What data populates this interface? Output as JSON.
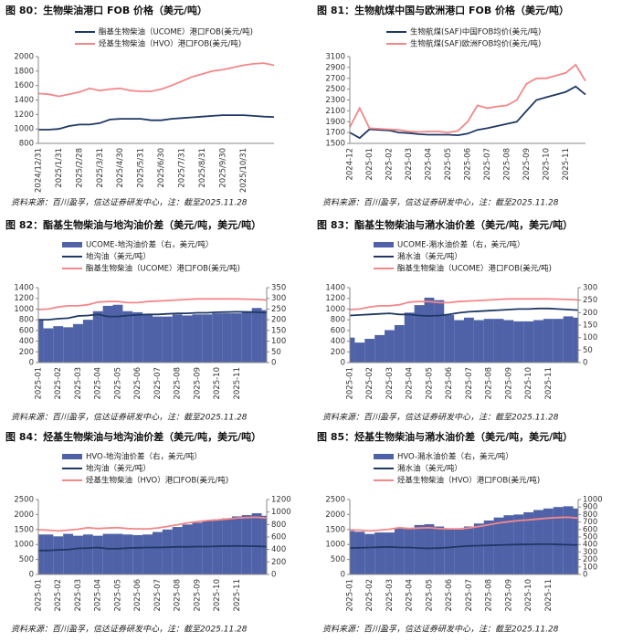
{
  "chart_data": [
    {
      "type": "line",
      "title": "图 80：生物柴油港口 FOB 价格（美元/吨）",
      "source": "资料来源：百川盈孚，信达证券研发中心，注：截至2025.11.28",
      "categories": [
        "2024/12/31",
        null,
        "2025/1/31",
        null,
        "2025/2/28",
        null,
        "2025/3/31",
        null,
        "2025/4/30",
        null,
        "2025/5/31",
        null,
        "2025/6/30",
        null,
        "2025/7/31",
        null,
        "2025/8/31",
        null,
        "2025/9/30",
        null,
        "2025/10/31",
        null,
        null,
        null
      ],
      "ylim": [
        800,
        2000
      ],
      "yticks": [
        800,
        1000,
        1200,
        1400,
        1600,
        1800,
        2000
      ],
      "series": [
        {
          "name": "酯基生物柴油（UCOME）港口FOB(美元/吨)",
          "color": "#1f3864",
          "values": [
            990,
            990,
            1000,
            1040,
            1060,
            1060,
            1080,
            1130,
            1140,
            1140,
            1140,
            1120,
            1120,
            1140,
            1150,
            1160,
            1170,
            1180,
            1190,
            1190,
            1190,
            1180,
            1170,
            1165
          ]
        },
        {
          "name": "烃基生物柴油（HVO）港口FOB(美元/吨)",
          "color": "#f4878a",
          "values": [
            1490,
            1480,
            1450,
            1480,
            1510,
            1560,
            1530,
            1550,
            1560,
            1530,
            1520,
            1520,
            1550,
            1600,
            1660,
            1720,
            1760,
            1800,
            1820,
            1850,
            1880,
            1900,
            1910,
            1880
          ]
        }
      ]
    },
    {
      "type": "line",
      "title": "图 81：生物航煤中国与欧洲港口 FOB 价格（美元/吨）",
      "source": "资料来源：百川盈孚，信达证券研发中心，注：截至2025.11.28",
      "categories": [
        "2024-12",
        null,
        "2025-01",
        null,
        "2025-02",
        null,
        "2025-03",
        null,
        "2025-04",
        null,
        "2025-05",
        null,
        "2025-06",
        null,
        "2025-07",
        null,
        "2025-08",
        null,
        "2025-09",
        null,
        "2025-10",
        null,
        "2025-11",
        null,
        null
      ],
      "ylim": [
        1500,
        3100
      ],
      "yticks": [
        1500,
        1700,
        1900,
        2100,
        2300,
        2500,
        2700,
        2900,
        3100
      ],
      "series": [
        {
          "name": "生物航煤(SAF)中国FOB均价(美元/吨)",
          "color": "#1f3864",
          "values": [
            1700,
            1600,
            1760,
            1750,
            1740,
            1700,
            1690,
            1670,
            1660,
            1660,
            1660,
            1650,
            1680,
            1750,
            1780,
            1820,
            1860,
            1900,
            2100,
            2300,
            2350,
            2400,
            2450,
            2550,
            2400
          ]
        },
        {
          "name": "生物航煤(SAF)欧洲FOB均价(美元/吨)",
          "color": "#f4878a",
          "values": [
            1800,
            2150,
            1780,
            1770,
            1760,
            1750,
            1720,
            1710,
            1720,
            1720,
            1700,
            1730,
            1900,
            2200,
            2150,
            2180,
            2200,
            2300,
            2600,
            2700,
            2700,
            2750,
            2800,
            2950,
            2650
          ]
        }
      ]
    },
    {
      "type": "line",
      "title": "图 82：酯基生物柴油与地沟油价差（美元/吨，美元/吨）",
      "source": "资料来源：百川盈孚，信达证券研发中心，注：截至2025.11.28",
      "categories": [
        "2025-01",
        null,
        "2025-02",
        null,
        "2025-03",
        null,
        "2025-04",
        null,
        "2025-05",
        null,
        "2025-06",
        null,
        "2025-07",
        null,
        "2025-08",
        null,
        "2025-09",
        null,
        "2025-10",
        null,
        "2025-11",
        null,
        null,
        null
      ],
      "ylim": [
        0,
        1400
      ],
      "yticks": [
        0,
        200,
        400,
        600,
        800,
        1000,
        1200,
        1400
      ],
      "y2lim": [
        0,
        350
      ],
      "y2ticks": [
        0,
        50,
        100,
        150,
        200,
        250,
        300,
        350
      ],
      "series": [
        {
          "name": "UCOME-地沟油价差（右，美元/吨）",
          "color": "#4f62a8",
          "kind": "area",
          "axis": "y2",
          "values": [
            200,
            160,
            170,
            165,
            180,
            200,
            240,
            265,
            270,
            240,
            235,
            225,
            215,
            215,
            225,
            220,
            225,
            225,
            230,
            230,
            230,
            240,
            255,
            245
          ]
        },
        {
          "name": "地沟油（美元/吨）",
          "color": "#1f3864",
          "values": [
            800,
            800,
            820,
            830,
            870,
            880,
            900,
            860,
            860,
            880,
            890,
            900,
            900,
            910,
            920,
            920,
            930,
            930,
            940,
            945,
            950,
            945,
            940,
            930
          ]
        },
        {
          "name": "酯基生物柴油（UCOME）港口FOB(美元/吨)",
          "color": "#f4878a",
          "values": [
            990,
            1000,
            1040,
            1060,
            1060,
            1080,
            1130,
            1140,
            1140,
            1120,
            1120,
            1140,
            1150,
            1160,
            1170,
            1180,
            1190,
            1190,
            1190,
            1190,
            1190,
            1185,
            1180,
            1170
          ]
        }
      ]
    },
    {
      "type": "line",
      "title": "图 83：酯基生物柴油与潲水油价差（美元/吨，美元/吨）",
      "source": "资料来源：百川盈孚，信达证券研发中心，注：截至2025.11.28",
      "categories": [
        "2025-01",
        null,
        "2025-02",
        null,
        "2025-03",
        null,
        "2025-04",
        null,
        "2025-05",
        null,
        "2025-06",
        null,
        "2025-07",
        null,
        "2025-08",
        null,
        "2025-09",
        null,
        "2025-10",
        null,
        "2025-11",
        null,
        null,
        null
      ],
      "ylim": [
        0,
        1400
      ],
      "yticks": [
        0,
        200,
        400,
        600,
        800,
        1000,
        1200,
        1400
      ],
      "y2lim": [
        0,
        300
      ],
      "y2ticks": [
        0,
        50,
        100,
        150,
        200,
        250,
        300
      ],
      "series": [
        {
          "name": "UCOME-潲水油价差（右，美元/吨）",
          "color": "#4f62a8",
          "kind": "area",
          "axis": "y2",
          "values": [
            100,
            80,
            95,
            110,
            130,
            150,
            200,
            230,
            260,
            250,
            190,
            170,
            180,
            170,
            175,
            175,
            170,
            165,
            165,
            170,
            175,
            175,
            185,
            180
          ]
        },
        {
          "name": "潲水油（美元/吨）",
          "color": "#1f3864",
          "values": [
            880,
            890,
            900,
            910,
            920,
            900,
            900,
            880,
            870,
            880,
            900,
            930,
            950,
            960,
            970,
            980,
            990,
            1000,
            1000,
            1010,
            1010,
            1000,
            990,
            980
          ]
        },
        {
          "name": "酯基生物柴油（UCOME）港口FOB(美元/吨)",
          "color": "#f4878a",
          "values": [
            990,
            1000,
            1040,
            1060,
            1060,
            1080,
            1130,
            1140,
            1140,
            1120,
            1120,
            1140,
            1150,
            1160,
            1170,
            1180,
            1190,
            1190,
            1190,
            1190,
            1190,
            1185,
            1180,
            1170
          ]
        }
      ]
    },
    {
      "type": "line",
      "title": "图 84：烃基生物柴油与地沟油价差（美元/吨，美元/吨）",
      "source": "资料来源：百川盈孚，信达证券研发中心，注：截至2025.11.28",
      "categories": [
        "2025-01",
        null,
        "2025-02",
        null,
        "2025-03",
        null,
        "2025-04",
        null,
        "2025-05",
        null,
        "2025-06",
        null,
        "2025-07",
        null,
        "2025-08",
        null,
        "2025-09",
        null,
        "2025-10",
        null,
        "2025-11",
        null,
        null,
        null
      ],
      "ylim": [
        0,
        2500
      ],
      "yticks": [
        0,
        500,
        1000,
        1500,
        2000,
        2500
      ],
      "y2lim": [
        0,
        1200
      ],
      "y2ticks": [
        0,
        200,
        400,
        600,
        800,
        1000,
        1200
      ],
      "series": [
        {
          "name": "HVO-地沟油价差（右，美元/吨）",
          "color": "#4f62a8",
          "kind": "area",
          "axis": "y2",
          "values": [
            640,
            640,
            610,
            650,
            620,
            640,
            620,
            650,
            650,
            640,
            630,
            640,
            680,
            720,
            760,
            800,
            830,
            860,
            880,
            900,
            930,
            950,
            980,
            940
          ]
        },
        {
          "name": "地沟油（美元/吨）",
          "color": "#1f3864",
          "values": [
            800,
            800,
            820,
            830,
            870,
            880,
            900,
            860,
            860,
            880,
            890,
            900,
            900,
            910,
            920,
            920,
            930,
            930,
            940,
            945,
            950,
            945,
            940,
            930
          ]
        },
        {
          "name": "烃基生物柴油（HVO）港口FOB(美元/吨)",
          "color": "#f4878a",
          "values": [
            1490,
            1480,
            1450,
            1480,
            1510,
            1560,
            1530,
            1550,
            1560,
            1530,
            1520,
            1520,
            1550,
            1600,
            1660,
            1720,
            1760,
            1800,
            1820,
            1850,
            1880,
            1900,
            1910,
            1880
          ]
        }
      ]
    },
    {
      "type": "line",
      "title": "图 85：烃基生物柴油与潲水油价差（美元/吨，美元/吨）",
      "source": "资料来源：百川盈孚，信达证券研发中心，注：截至2025.11.28",
      "categories": [
        "2025-01",
        null,
        "2025-02",
        null,
        "2025-03",
        null,
        "2025-04",
        null,
        "2025-05",
        null,
        "2025-06",
        null,
        "2025-07",
        null,
        "2025-08",
        null,
        "2025-09",
        null,
        "2025-10",
        null,
        "2025-11",
        null,
        null,
        null
      ],
      "ylim": [
        0,
        2500
      ],
      "yticks": [
        0,
        500,
        1000,
        1500,
        2000,
        2500
      ],
      "y2lim": [
        0,
        1000
      ],
      "y2ticks": [
        0,
        100,
        200,
        300,
        400,
        500,
        600,
        700,
        800,
        900,
        1000
      ],
      "series": [
        {
          "name": "HVO-潲水油价差（右，美元/吨）",
          "color": "#4f62a8",
          "kind": "area",
          "axis": "y2",
          "values": [
            580,
            570,
            540,
            560,
            560,
            620,
            620,
            660,
            670,
            640,
            610,
            600,
            640,
            680,
            720,
            760,
            790,
            800,
            830,
            860,
            880,
            900,
            910,
            880
          ]
        },
        {
          "name": "潲水油（美元/吨）",
          "color": "#1f3864",
          "values": [
            880,
            890,
            900,
            910,
            920,
            900,
            900,
            880,
            870,
            880,
            900,
            930,
            950,
            960,
            970,
            980,
            990,
            1000,
            1000,
            1010,
            1010,
            1000,
            990,
            980
          ]
        },
        {
          "name": "烃基生物柴油（HVO）港口FOB(美元/吨)",
          "color": "#f4878a",
          "values": [
            1490,
            1480,
            1450,
            1480,
            1510,
            1560,
            1530,
            1550,
            1560,
            1530,
            1520,
            1520,
            1550,
            1600,
            1660,
            1720,
            1760,
            1800,
            1820,
            1850,
            1880,
            1900,
            1910,
            1880
          ]
        }
      ]
    }
  ]
}
